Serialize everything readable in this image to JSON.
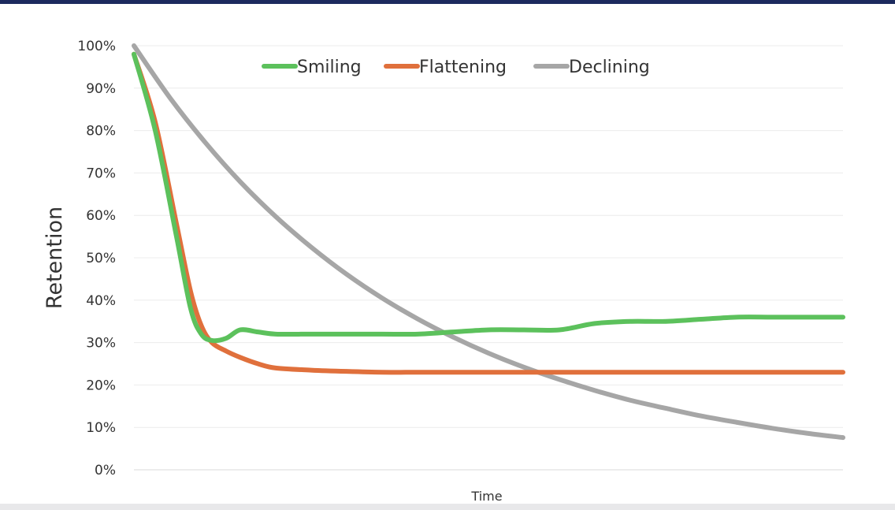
{
  "chart_data": {
    "type": "line",
    "title": "",
    "xlabel": "Time",
    "ylabel": "Retention",
    "ylim": [
      0,
      100
    ],
    "xlim": [
      0,
      100
    ],
    "yticks": [
      "0%",
      "10%",
      "20%",
      "30%",
      "40%",
      "50%",
      "60%",
      "70%",
      "80%",
      "90%",
      "100%"
    ],
    "grid": "horizontal",
    "legend_position": "top",
    "series": [
      {
        "name": "Smiling",
        "color": "#5cc15c",
        "x": [
          0,
          3,
          6,
          8,
          9.5,
          11,
          13,
          15,
          17.5,
          20,
          25,
          30,
          35,
          40,
          45,
          50,
          55,
          60,
          65,
          70,
          75,
          80,
          85,
          90,
          95,
          100
        ],
        "y": [
          98,
          80,
          55,
          38,
          32,
          30.5,
          31,
          33,
          32.5,
          32,
          32,
          32,
          32,
          32,
          32.5,
          33,
          33,
          33,
          34.5,
          35,
          35,
          35.5,
          36,
          36,
          36,
          36
        ]
      },
      {
        "name": "Flattening",
        "color": "#e0703c",
        "x": [
          0,
          3,
          6,
          8,
          9.5,
          11,
          13,
          15,
          17.5,
          20,
          25,
          30,
          35,
          40,
          45,
          50,
          55,
          60,
          65,
          70,
          75,
          80,
          85,
          90,
          95,
          100
        ],
        "y": [
          98,
          82,
          58,
          42,
          34,
          30,
          28,
          26.5,
          25,
          24,
          23.5,
          23.2,
          23,
          23,
          23,
          23,
          23,
          23,
          23,
          23,
          23,
          23,
          23,
          23,
          23,
          23
        ]
      },
      {
        "name": "Declining",
        "color": "#a6a6a6",
        "x": [
          0,
          5,
          10,
          15,
          20,
          25,
          30,
          35,
          40,
          45,
          50,
          55,
          60,
          65,
          70,
          75,
          80,
          85,
          90,
          95,
          100
        ],
        "y": [
          100,
          87.9,
          77.3,
          67.9,
          59.7,
          52.5,
          46.1,
          40.5,
          35.6,
          31.3,
          27.5,
          24.2,
          21.3,
          18.7,
          16.4,
          14.5,
          12.7,
          11.2,
          9.8,
          8.6,
          7.6
        ]
      }
    ]
  }
}
